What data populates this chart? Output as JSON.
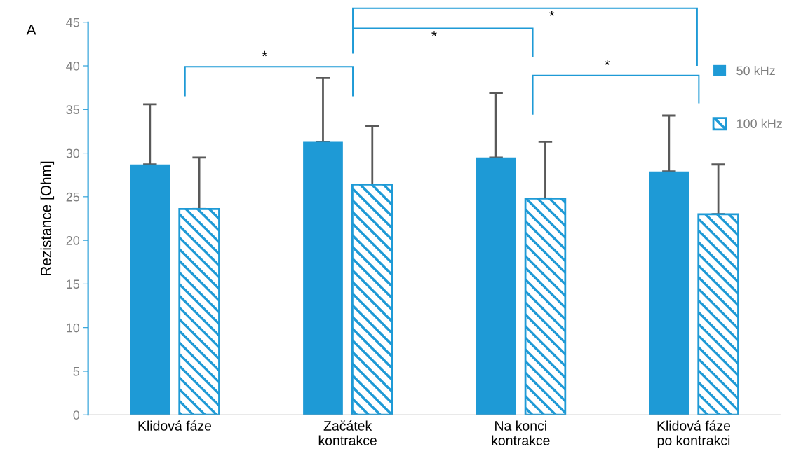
{
  "chart_data": {
    "type": "bar",
    "ylabel": "Rezistance [Ohm]",
    "categories": [
      "Klidová fáze",
      "Začátek\nkontrakce",
      "Na konci\nkontrakce",
      "Klidová fáze\npo kontrakci"
    ],
    "series": [
      {
        "name": "50 kHz",
        "color": "#1e9ad6",
        "values": [
          28.7,
          31.3,
          29.5,
          27.9
        ],
        "errors": [
          [
            28.7,
            35.6
          ],
          [
            31.3,
            38.6
          ],
          [
            29.5,
            36.9
          ],
          [
            27.9,
            34.3
          ]
        ]
      },
      {
        "name": "100 kHz",
        "color": "#1e9ad6",
        "values": [
          23.6,
          26.4,
          24.8,
          23.0
        ],
        "errors": [
          [
            23.6,
            29.5
          ],
          [
            26.4,
            33.1
          ],
          [
            24.8,
            31.3
          ],
          [
            23.0,
            28.7
          ]
        ]
      }
    ],
    "ylim": [
      0,
      45
    ],
    "yticks": [
      0,
      5,
      10,
      15,
      20,
      25,
      30,
      35,
      40,
      45
    ],
    "grid": false,
    "legend": "right",
    "annotations": [
      "A",
      "*",
      "*",
      "*",
      "*"
    ]
  }
}
